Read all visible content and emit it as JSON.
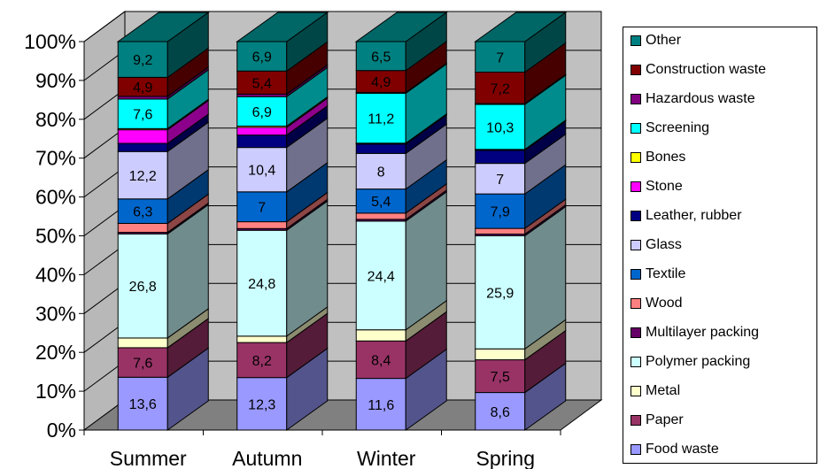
{
  "chart_data": {
    "type": "bar",
    "stacked": true,
    "percent_stacked": true,
    "three_d": true,
    "categories": [
      "Summer",
      "Autumn",
      "Winter",
      "Spring"
    ],
    "ylim": [
      0,
      100
    ],
    "y_ticks": [
      "0%",
      "10%",
      "20%",
      "30%",
      "40%",
      "50%",
      "60%",
      "70%",
      "80%",
      "90%",
      "100%"
    ],
    "grid": true,
    "legend_position": "right",
    "series": [
      {
        "name": "Food waste",
        "color": "#9999ff",
        "values": [
          13.6,
          12.3,
          11.6,
          8.6
        ],
        "labels": [
          "13,6",
          "12,3",
          "11,6",
          "8,6"
        ]
      },
      {
        "name": "Paper",
        "color": "#993366",
        "values": [
          7.6,
          8.2,
          8.4,
          7.5
        ],
        "labels": [
          "7,6",
          "8,2",
          "8,4",
          "7,5"
        ]
      },
      {
        "name": "Metal",
        "color": "#ffffcc",
        "values": [
          2.5,
          1.5,
          2.5,
          2.5
        ],
        "labels": [
          "",
          "",
          "",
          ""
        ]
      },
      {
        "name": "Polymer packing",
        "color": "#ccffff",
        "values": [
          26.8,
          24.8,
          24.4,
          25.9
        ],
        "labels": [
          "26,8",
          "24,8",
          "24,4",
          "25,9"
        ]
      },
      {
        "name": "Multilayer packing",
        "color": "#660066",
        "values": [
          0.4,
          0.4,
          0.4,
          0.4
        ],
        "labels": [
          "",
          "",
          "",
          ""
        ]
      },
      {
        "name": "Wood",
        "color": "#ff8080",
        "values": [
          2.3,
          1.6,
          1.4,
          1.3
        ],
        "labels": [
          "",
          "",
          "",
          ""
        ]
      },
      {
        "name": "Textile",
        "color": "#0066cc",
        "values": [
          6.3,
          7.0,
          5.4,
          7.9
        ],
        "labels": [
          "6,3",
          "7",
          "5,4",
          "7,9"
        ]
      },
      {
        "name": "Glass",
        "color": "#ccccff",
        "values": [
          12.2,
          10.4,
          8.0,
          7.0
        ],
        "labels": [
          "12,2",
          "10,4",
          "8",
          "7"
        ]
      },
      {
        "name": "Leather, rubber",
        "color": "#000080",
        "values": [
          2.1,
          2.9,
          2.1,
          3.0
        ],
        "labels": [
          "",
          "",
          "",
          ""
        ]
      },
      {
        "name": "Stone",
        "color": "#ff00ff",
        "values": [
          3.5,
          1.8,
          0.1,
          0.1
        ],
        "labels": [
          "",
          "",
          "",
          ""
        ]
      },
      {
        "name": "Bones",
        "color": "#ffff00",
        "values": [
          0.3,
          0.3,
          0.1,
          0.1
        ],
        "labels": [
          "",
          "",
          "",
          ""
        ]
      },
      {
        "name": "Screening",
        "color": "#00ffff",
        "values": [
          7.6,
          6.9,
          11.2,
          10.3
        ],
        "labels": [
          "7,6",
          "6,9",
          "11,2",
          "10,3"
        ]
      },
      {
        "name": "Hazardous waste",
        "color": "#800080",
        "values": [
          0.7,
          0.6,
          0.2,
          0.2
        ],
        "labels": [
          "",
          "",
          "",
          ""
        ]
      },
      {
        "name": "Construction waste",
        "color": "#800000",
        "values": [
          4.9,
          5.4,
          4.9,
          7.2
        ],
        "labels": [
          "4,9",
          "5,4",
          "4,9",
          "7,2"
        ]
      },
      {
        "name": "Other",
        "color": "#008080",
        "values": [
          9.2,
          6.9,
          6.5,
          7.0
        ],
        "labels": [
          "9,2",
          "6,9",
          "6,5",
          "7"
        ]
      }
    ]
  }
}
